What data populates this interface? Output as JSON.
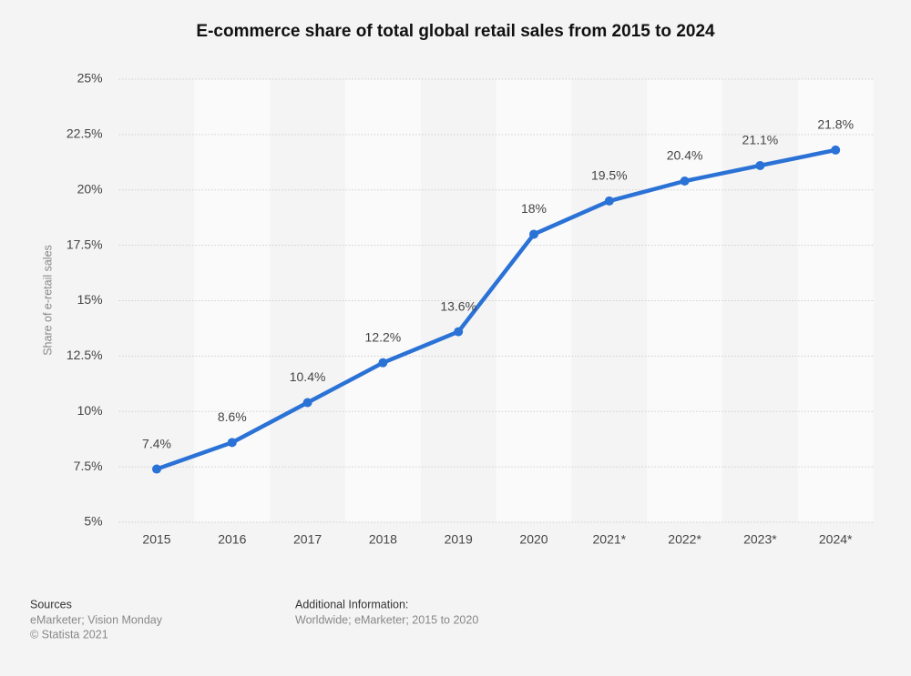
{
  "chart_data": {
    "type": "line",
    "title": "E-commerce share of total global retail sales from 2015 to 2024",
    "y_label": "Share of e-retail sales",
    "categories": [
      "2015",
      "2016",
      "2017",
      "2018",
      "2019",
      "2020",
      "2021*",
      "2022*",
      "2023*",
      "2024*"
    ],
    "values": [
      7.4,
      8.6,
      10.4,
      12.2,
      13.6,
      18,
      19.5,
      20.4,
      21.1,
      21.8
    ],
    "value_labels": [
      "7.4%",
      "8.6%",
      "10.4%",
      "12.2%",
      "13.6%",
      "18%",
      "19.5%",
      "20.4%",
      "21.1%",
      "21.8%"
    ],
    "color": "#2b72d6",
    "ylim": [
      5,
      25
    ],
    "yticks": [
      {
        "value": 5,
        "label": "5%"
      },
      {
        "value": 7.5,
        "label": "7.5%"
      },
      {
        "value": 10,
        "label": "10%"
      },
      {
        "value": 12.5,
        "label": "12.5%"
      },
      {
        "value": 15,
        "label": "15%"
      },
      {
        "value": 17.5,
        "label": "17.5%"
      },
      {
        "value": 20,
        "label": "20%"
      },
      {
        "value": 22.5,
        "label": "22.5%"
      },
      {
        "value": 25,
        "label": "25%"
      }
    ],
    "grid": true
  },
  "footer": {
    "sources_title": "Sources",
    "sources": "eMarketer; Vision Monday",
    "copyright": "© Statista 2021",
    "info_title": "Additional Information:",
    "info": "Worldwide; eMarketer; 2015 to 2020"
  }
}
